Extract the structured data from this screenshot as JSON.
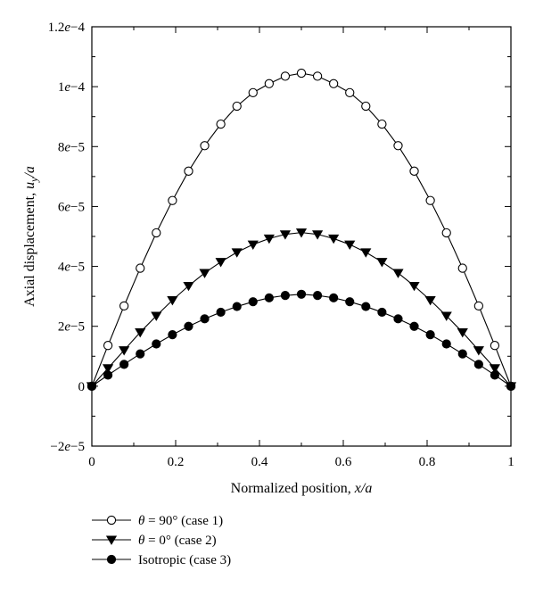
{
  "chart_data": {
    "type": "line",
    "title": "",
    "xlabel": "Normalized position, x/a",
    "ylabel": "Axial displacement, u_y/a",
    "xlim": [
      0,
      1
    ],
    "ylim": [
      -2e-05,
      0.00012
    ],
    "grid": false,
    "legend_position": "bottom-left",
    "x_ticks": [
      0,
      0.2,
      0.4,
      0.6,
      0.8,
      1
    ],
    "x_tick_labels": [
      "0",
      "0.2",
      "0.4",
      "0.6",
      "0.8",
      "1"
    ],
    "y_ticks": [
      -2e-05,
      0,
      2e-05,
      4e-05,
      6e-05,
      8e-05,
      0.0001,
      0.00012
    ],
    "y_tick_labels": [
      "−2e−5",
      "0",
      "2e−5",
      "4e−5",
      "6e−5",
      "8e−5",
      "1e−4",
      "1.2e−4"
    ],
    "x": [
      0,
      0.0385,
      0.0769,
      0.1154,
      0.1538,
      0.1923,
      0.2308,
      0.2692,
      0.3077,
      0.3462,
      0.3846,
      0.4231,
      0.4615,
      0.5,
      0.5385,
      0.5769,
      0.6154,
      0.6538,
      0.6923,
      0.7308,
      0.7692,
      0.8077,
      0.8462,
      0.8846,
      0.9231,
      0.9615,
      1
    ],
    "series": [
      {
        "name": "θ = 90° (case 1)",
        "marker": "circle-open",
        "values": [
          0,
          1.36e-05,
          2.68e-05,
          3.94e-05,
          5.12e-05,
          6.2e-05,
          7.18e-05,
          8.03e-05,
          8.75e-05,
          9.35e-05,
          9.8e-05,
          0.000101,
          0.0001035,
          0.0001045,
          0.0001035,
          0.000101,
          9.8e-05,
          9.35e-05,
          8.75e-05,
          8.03e-05,
          7.18e-05,
          6.2e-05,
          5.12e-05,
          3.94e-05,
          2.68e-05,
          1.36e-05,
          0
        ]
      },
      {
        "name": "θ = 0° (case 2)",
        "marker": "triangle-down-filled",
        "values": [
          0,
          6e-06,
          1.2e-05,
          1.8e-05,
          2.35e-05,
          2.87e-05,
          3.35e-05,
          3.78e-05,
          4.15e-05,
          4.47e-05,
          4.73e-05,
          4.93e-05,
          5.07e-05,
          5.13e-05,
          5.07e-05,
          4.93e-05,
          4.73e-05,
          4.47e-05,
          4.15e-05,
          3.78e-05,
          3.35e-05,
          2.87e-05,
          2.35e-05,
          1.8e-05,
          1.2e-05,
          6e-06,
          0
        ]
      },
      {
        "name": "Isotropic (case 3)",
        "marker": "circle-filled",
        "values": [
          0,
          3.7e-06,
          7.3e-06,
          1.08e-05,
          1.41e-05,
          1.72e-05,
          2e-05,
          2.25e-05,
          2.47e-05,
          2.66e-05,
          2.82e-05,
          2.95e-05,
          3.03e-05,
          3.07e-05,
          3.03e-05,
          2.95e-05,
          2.82e-05,
          2.66e-05,
          2.47e-05,
          2.25e-05,
          2e-05,
          1.72e-05,
          1.41e-05,
          1.08e-05,
          7.3e-06,
          3.7e-06,
          0
        ]
      }
    ]
  }
}
